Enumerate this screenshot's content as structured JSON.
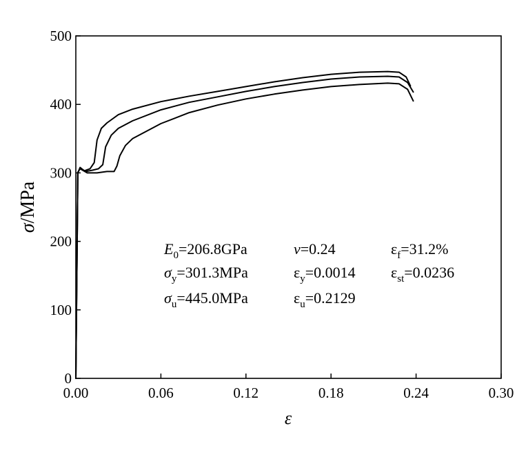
{
  "chart_data": {
    "type": "line",
    "xlabel": "ε",
    "ylabel_symbol": "σ",
    "ylabel_unit": "/MPa",
    "xlim": [
      0,
      0.3
    ],
    "ylim": [
      0,
      500
    ],
    "xticks": [
      0,
      0.06,
      0.12,
      0.18,
      0.24,
      0.3
    ],
    "xtick_labels": [
      "0.00",
      "0.06",
      "0.12",
      "0.18",
      "0.24",
      "0.30"
    ],
    "yticks": [
      0,
      100,
      200,
      300,
      400,
      500
    ],
    "ytick_labels": [
      "0",
      "100",
      "200",
      "300",
      "400",
      "500"
    ],
    "grid": false,
    "series": [
      {
        "x": [
          0.0,
          0.0014,
          0.003,
          0.006,
          0.01,
          0.013,
          0.015,
          0.018,
          0.022,
          0.03,
          0.04,
          0.06,
          0.08,
          0.1,
          0.12,
          0.14,
          0.16,
          0.18,
          0.2,
          0.22,
          0.228,
          0.233,
          0.236
        ],
        "y": [
          0,
          300,
          308,
          303,
          306,
          315,
          348,
          365,
          373,
          385,
          393,
          404,
          412,
          419,
          426,
          433,
          439,
          444,
          447,
          448,
          447,
          440,
          427
        ]
      },
      {
        "x": [
          0.0,
          0.0014,
          0.003,
          0.007,
          0.012,
          0.016,
          0.019,
          0.021,
          0.025,
          0.03,
          0.04,
          0.06,
          0.08,
          0.1,
          0.12,
          0.14,
          0.16,
          0.18,
          0.2,
          0.22,
          0.228,
          0.234,
          0.238
        ],
        "y": [
          0,
          300,
          307,
          302,
          304,
          306,
          312,
          338,
          355,
          365,
          376,
          392,
          403,
          411,
          419,
          426,
          432,
          437,
          440,
          441,
          440,
          432,
          418
        ]
      },
      {
        "x": [
          0.0,
          0.0014,
          0.003,
          0.008,
          0.015,
          0.022,
          0.027,
          0.029,
          0.031,
          0.035,
          0.04,
          0.06,
          0.08,
          0.1,
          0.12,
          0.14,
          0.16,
          0.18,
          0.2,
          0.22,
          0.228,
          0.234,
          0.238
        ],
        "y": [
          0,
          301,
          306,
          300,
          300,
          302,
          302,
          310,
          325,
          340,
          350,
          372,
          388,
          399,
          408,
          415,
          421,
          426,
          429,
          431,
          430,
          422,
          405
        ]
      }
    ],
    "annotations": [
      [
        "E0=206.8GPa",
        "ν=0.24",
        "εf=31.2%"
      ],
      [
        "σy=301.3MPa",
        "εy=0.0014",
        "εst=0.0236"
      ],
      [
        "σu=445.0MPa",
        "εu=0.2129",
        ""
      ]
    ]
  }
}
